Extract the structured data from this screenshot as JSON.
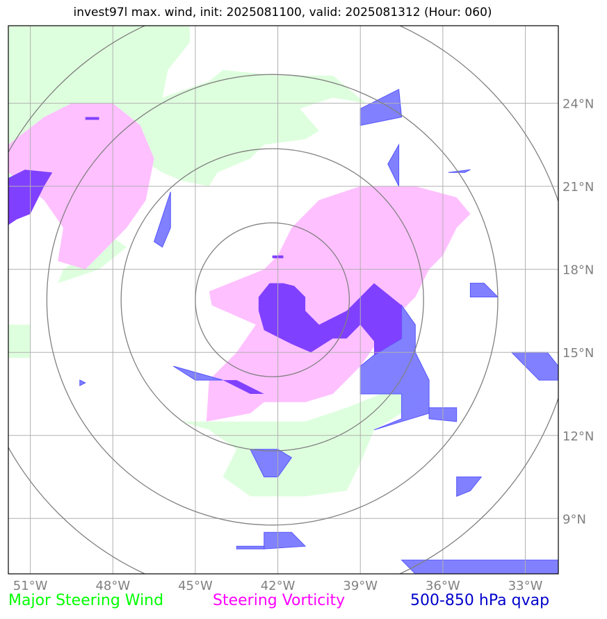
{
  "title": "invest97l max. wind, init: 2025081100, valid: 2025081312 (Hour: 060)",
  "map": {
    "lon_range": [
      -51.8,
      -31.8
    ],
    "lat_range": [
      7.0,
      26.8
    ],
    "lon_ticks": [
      -51,
      -48,
      -45,
      -42,
      -39,
      -36,
      -33
    ],
    "lat_ticks": [
      9,
      12,
      15,
      18,
      21,
      24
    ],
    "lon_tick_labels": [
      "51°W",
      "48°W",
      "45°W",
      "42°W",
      "39°W",
      "36°W",
      "33°W"
    ],
    "lat_tick_labels": [
      "9°N",
      "12°N",
      "15°N",
      "18°N",
      "21°N",
      "24°N"
    ],
    "center": {
      "lon": -42.2,
      "lat": 16.9
    },
    "range_rings_deg": [
      2.8,
      5.5,
      8.2,
      11.0
    ],
    "grid": true
  },
  "legend": [
    {
      "label": "Major Steering Wind",
      "color": "#00ff00"
    },
    {
      "label": "Steering Vorticity",
      "color": "#ff00ff"
    },
    {
      "label": "500-850 hPa qvap",
      "color": "#0000cc"
    }
  ],
  "colors": {
    "wind_fill": "#deffde",
    "vort_fill": "#ffc0ff",
    "qvap_fill": "#7a7aff",
    "qvap_edge": "#5555ff",
    "overlap_fill": "#8040ff",
    "grid": "#b0b0b0",
    "rings": "#808080",
    "tick_label": "#808080"
  },
  "regions": {
    "wind": [
      [
        [
          -51.8,
          21.0
        ],
        [
          -51.8,
          26.8
        ],
        [
          -45.2,
          26.8
        ],
        [
          -45.2,
          26.2
        ],
        [
          -46.0,
          25.2
        ],
        [
          -46.2,
          24.2
        ],
        [
          -44.5,
          24.8
        ],
        [
          -44.0,
          25.2
        ],
        [
          -42.0,
          25.0
        ],
        [
          -40.0,
          25.0
        ],
        [
          -38.8,
          24.0
        ],
        [
          -40.0,
          24.2
        ],
        [
          -41.2,
          23.8
        ],
        [
          -40.5,
          23.0
        ],
        [
          -41.0,
          22.7
        ],
        [
          -42.5,
          22.5
        ],
        [
          -43.0,
          22.0
        ],
        [
          -44.2,
          21.5
        ],
        [
          -44.5,
          21.0
        ],
        [
          -45.5,
          21.2
        ],
        [
          -46.2,
          21.5
        ],
        [
          -47.0,
          22.0
        ],
        [
          -48.0,
          22.5
        ],
        [
          -49.5,
          23.5
        ],
        [
          -50.5,
          22.0
        ]
      ],
      [
        [
          -50.0,
          17.5
        ],
        [
          -48.5,
          18.0
        ],
        [
          -47.5,
          18.8
        ],
        [
          -48.5,
          19.5
        ],
        [
          -49.0,
          18.5
        ],
        [
          -49.8,
          18.0
        ]
      ],
      [
        [
          -51.8,
          16.0
        ],
        [
          -51.0,
          16.0
        ],
        [
          -51.0,
          14.8
        ],
        [
          -51.8,
          14.8
        ]
      ],
      [
        [
          -45.5,
          12.5
        ],
        [
          -41.0,
          12.5
        ],
        [
          -39.5,
          13.0
        ],
        [
          -38.0,
          13.6
        ],
        [
          -36.5,
          13.6
        ],
        [
          -37.5,
          12.8
        ],
        [
          -38.5,
          12.2
        ],
        [
          -39.0,
          11.0
        ],
        [
          -39.5,
          10.0
        ],
        [
          -41.0,
          9.8
        ],
        [
          -43.0,
          9.8
        ],
        [
          -44.0,
          10.5
        ],
        [
          -43.5,
          11.5
        ],
        [
          -44.5,
          12.2
        ]
      ]
    ],
    "vort": [
      [
        [
          -51.8,
          22.5
        ],
        [
          -50.5,
          23.5
        ],
        [
          -49.5,
          24.0
        ],
        [
          -48.0,
          24.0
        ],
        [
          -47.0,
          23.2
        ],
        [
          -46.5,
          22.0
        ],
        [
          -46.8,
          20.5
        ],
        [
          -47.5,
          19.5
        ],
        [
          -48.5,
          18.5
        ],
        [
          -49.0,
          18.0
        ],
        [
          -50.0,
          18.3
        ],
        [
          -49.8,
          19.5
        ],
        [
          -50.5,
          20.5
        ],
        [
          -51.8,
          21.5
        ]
      ],
      [
        [
          -44.6,
          12.5
        ],
        [
          -44.5,
          14.0
        ],
        [
          -43.5,
          15.0
        ],
        [
          -42.8,
          16.0
        ],
        [
          -44.4,
          16.7
        ],
        [
          -44.5,
          17.2
        ],
        [
          -42.5,
          18.0
        ],
        [
          -42.0,
          18.5
        ],
        [
          -41.5,
          19.5
        ],
        [
          -41.0,
          20.0
        ],
        [
          -40.5,
          20.5
        ],
        [
          -39.0,
          21.0
        ],
        [
          -37.0,
          21.0
        ],
        [
          -35.5,
          20.6
        ],
        [
          -35.0,
          20.0
        ],
        [
          -35.5,
          19.5
        ],
        [
          -36.0,
          18.5
        ],
        [
          -36.5,
          18.0
        ],
        [
          -37.0,
          17.0
        ],
        [
          -37.5,
          16.5
        ],
        [
          -38.0,
          16.0
        ],
        [
          -38.5,
          15.2
        ],
        [
          -39.0,
          14.5
        ],
        [
          -39.5,
          14.0
        ],
        [
          -40.0,
          13.5
        ],
        [
          -41.0,
          13.2
        ],
        [
          -42.5,
          13.2
        ],
        [
          -43.0,
          12.8
        ]
      ]
    ],
    "overlap": [
      [
        [
          -51.8,
          19.6
        ],
        [
          -51.8,
          21.3
        ],
        [
          -51.2,
          21.6
        ],
        [
          -50.2,
          21.5
        ],
        [
          -50.5,
          21.0
        ],
        [
          -51.0,
          20.0
        ],
        [
          -51.5,
          19.8
        ]
      ],
      [
        [
          -41.8,
          17.5
        ],
        [
          -41.4,
          17.4
        ],
        [
          -41.0,
          17.0
        ],
        [
          -41.0,
          16.5
        ],
        [
          -40.5,
          16.0
        ],
        [
          -39.5,
          16.5
        ],
        [
          -38.8,
          17.2
        ],
        [
          -38.5,
          17.5
        ],
        [
          -37.5,
          16.7
        ],
        [
          -37.5,
          15.5
        ],
        [
          -38.5,
          14.9
        ],
        [
          -38.5,
          15.4
        ],
        [
          -39.0,
          16.0
        ],
        [
          -39.5,
          15.5
        ],
        [
          -40.0,
          15.5
        ],
        [
          -40.8,
          15.0
        ],
        [
          -41.5,
          15.3
        ],
        [
          -42.5,
          15.8
        ],
        [
          -42.7,
          16.5
        ],
        [
          -42.7,
          17.0
        ],
        [
          -42.3,
          17.5
        ]
      ],
      [
        [
          -44.0,
          14.0
        ],
        [
          -43.0,
          13.5
        ],
        [
          -42.5,
          13.5
        ],
        [
          -43.5,
          14.0
        ]
      ],
      [
        [
          -49.0,
          23.5
        ],
        [
          -48.5,
          23.5
        ],
        [
          -48.5,
          23.4
        ],
        [
          -49.0,
          23.4
        ]
      ],
      [
        [
          -42.2,
          18.5
        ],
        [
          -41.8,
          18.5
        ],
        [
          -41.8,
          18.4
        ],
        [
          -42.2,
          18.4
        ]
      ]
    ],
    "qvap": [
      [
        [
          -46.5,
          19.0
        ],
        [
          -45.9,
          20.8
        ],
        [
          -45.9,
          19.5
        ],
        [
          -46.2,
          18.8
        ]
      ],
      [
        [
          -37.5,
          23.5
        ],
        [
          -39.0,
          23.2
        ],
        [
          -39.0,
          23.8
        ],
        [
          -37.6,
          24.5
        ]
      ],
      [
        [
          -37.6,
          21.0
        ],
        [
          -37.6,
          22.5
        ],
        [
          -38.0,
          21.8
        ]
      ],
      [
        [
          -37.5,
          16.7
        ],
        [
          -37.0,
          16.0
        ],
        [
          -37.0,
          15.0
        ],
        [
          -36.5,
          14.0
        ],
        [
          -36.5,
          12.8
        ],
        [
          -37.5,
          12.5
        ],
        [
          -38.5,
          12.2
        ],
        [
          -37.5,
          12.6
        ],
        [
          -37.5,
          13.5
        ],
        [
          -38.0,
          13.5
        ],
        [
          -39.0,
          13.5
        ],
        [
          -39.0,
          14.5
        ],
        [
          -38.5,
          14.9
        ],
        [
          -37.5,
          15.5
        ]
      ],
      [
        [
          -36.5,
          13.0
        ],
        [
          -35.5,
          13.0
        ],
        [
          -35.5,
          12.5
        ],
        [
          -36.5,
          12.6
        ]
      ],
      [
        [
          -35.0,
          17.5
        ],
        [
          -34.5,
          17.5
        ],
        [
          -34.0,
          17.0
        ],
        [
          -35.0,
          17.0
        ]
      ],
      [
        [
          -33.5,
          15.0
        ],
        [
          -32.2,
          15.0
        ],
        [
          -31.8,
          14.5
        ],
        [
          -31.8,
          14.0
        ],
        [
          -32.5,
          14.0
        ]
      ],
      [
        [
          -45.8,
          14.5
        ],
        [
          -44.0,
          14.0
        ],
        [
          -45.0,
          14.0
        ]
      ],
      [
        [
          -43.0,
          11.5
        ],
        [
          -42.0,
          11.5
        ],
        [
          -41.5,
          11.2
        ],
        [
          -42.0,
          10.5
        ],
        [
          -42.5,
          10.5
        ]
      ],
      [
        [
          -35.5,
          10.5
        ],
        [
          -34.6,
          10.5
        ],
        [
          -35.0,
          10.0
        ],
        [
          -35.5,
          9.8
        ]
      ],
      [
        [
          -35.8,
          21.5
        ],
        [
          -35.0,
          21.6
        ],
        [
          -35.2,
          21.5
        ]
      ],
      [
        [
          -42.5,
          8.5
        ],
        [
          -41.5,
          8.5
        ],
        [
          -41.0,
          8.0
        ],
        [
          -42.5,
          7.9
        ]
      ],
      [
        [
          -43.5,
          8.0
        ],
        [
          -42.5,
          8.0
        ],
        [
          -42.5,
          7.9
        ],
        [
          -43.5,
          7.9
        ]
      ],
      [
        [
          -37.5,
          7.5
        ],
        [
          -35.5,
          7.5
        ],
        [
          -34.5,
          7.5
        ],
        [
          -33.0,
          7.5
        ],
        [
          -32.5,
          7.5
        ],
        [
          -31.8,
          7.5
        ],
        [
          -31.8,
          7.0
        ],
        [
          -35.0,
          7.0
        ],
        [
          -37.0,
          7.0
        ]
      ],
      [
        [
          -49.2,
          14.0
        ],
        [
          -49.0,
          13.9
        ],
        [
          -49.2,
          13.8
        ]
      ]
    ]
  }
}
